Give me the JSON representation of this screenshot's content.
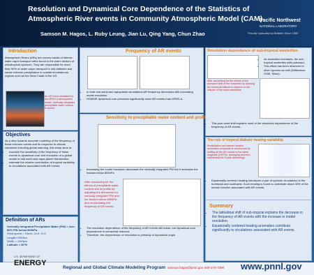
{
  "header": {
    "title_line1": "Resolution and Dynamical Core Dependence of the Statistics of",
    "title_line2": "Atmospheric River events in Community Atmospheric Model (CAM)",
    "authors": "Samson M. Hagos, L. Ruby  Leung,  Jian Lu, Qing Yang, Chun Zhao",
    "org1": "Pacific Northwest",
    "org2": "NATIONAL LABORATORY",
    "org3": "Proudly Operated by Battelle Since 1965"
  },
  "introduction": {
    "title": "Introduction",
    "text": "Atmospheric Rivers (ARs) are narrow bands of intense water vapor transport often found in the warm sectors of extratropical cyclones. They are responsible for more than 90% of water vapor transport to mid-latitudes and cause extreme precipitation in coastal mountainous regions such as the West Coast of the US.",
    "caption": "An AR event simulated by the MPAS-A atmospheric model. Vertically integrated precipitable water content is shown."
  },
  "objectives": {
    "title": "Objectives",
    "text": "As a step towards accurate modeling of the frequency of these extreme events and its response to climate variations including global warming, this study aims to;",
    "bullets": [
      "examine the sensitivity of the frequency of these events to dynamical core and resolution of a global model in real world and aqua-planet frameworks.",
      "estimate the relative contribution of tropical variability to circulations associated with AR events."
    ]
  },
  "definition": {
    "title": "Definition of ARs",
    "lines": [
      "Vertically Integrated Precipitable Water (PW)  > 2cm.",
      "80% PW below 800hPa.",
      "Wind speed > 10m/s, U>0, V>0",
      "Length>2000km",
      "Width < 1000km",
      "Latitude > 30°N"
    ]
  },
  "frequency": {
    "title": "Frequency of AR events",
    "bullets": [
      "In both real world and aquaplanet simulations AR frequency decreases with increasing model resolution",
      "HOMME dynamical core produces significantly more AR events than MPAS-A."
    ]
  },
  "sensitivity": {
    "title": "Sensitivity  to precipitable water content and profile",
    "bullets": [
      "Increasing the model resolution decreases the  vertically integrated PW but it increases the fraction below 800hPa",
      "The resolution dependence of the frequency of AR events still exists, but dynamical core dependence is somewhat reduced.",
      "Therefore, the dependence on resolution is primarily of dynamical origin."
    ],
    "caption": "After accounting for the effects of precipitable water content and its profile by adjusting the thresholds for vertically integrated PW and the fraction below 800hPa and recalculating the frequency of AR events."
  },
  "resolution": {
    "title": "Resolution dependence of sub-tropical westerlies",
    "bullets": [
      "As resolution increases, the sub-tropical westerlies shift poleward.",
      "This effect has been observed in other dycores as well (Williamson 2008, Tellus)."
    ],
    "caption": "After accounting for the effects of the poleward shift of the westerlies by allowing the threshold latitude to depend on the latitude of the mean westerlies",
    "bullet2": "This pole-ward shift explains most of the resolution dependence of the frequency of AR events."
  },
  "tropical": {
    "title": "The role of tropical diabatic heating variability",
    "text": "Precipitation and stream function anomalies composite is constructed by shifting all the AR events to the same longitude (120°W), averaging and then subtracting the 6-year climatology.",
    "bullet": "Equatorially centered heating introduces a pair of cyclonic circulations to the northeast and southwest. Such heating is found to contribute about 30% of the stream function associated with AR events."
  },
  "summary": {
    "title": "Summary",
    "bullets": [
      "The latitudinal shift of sub-tropical explains the decrease in the frequency of AR events with the increase in model resolution.",
      "Equatorially centered heating anomalies contribute significantly to circulations associated with AR events."
    ]
  },
  "footer": {
    "doe1": "U.S. DEPARTMENT OF",
    "doe2": "ENERGY",
    "program": "Regional and Global Climate Modeling Program",
    "contact": "samson.hagos@pnnl.gov,  509-375-7398",
    "url": "www.pnnl.gov"
  }
}
